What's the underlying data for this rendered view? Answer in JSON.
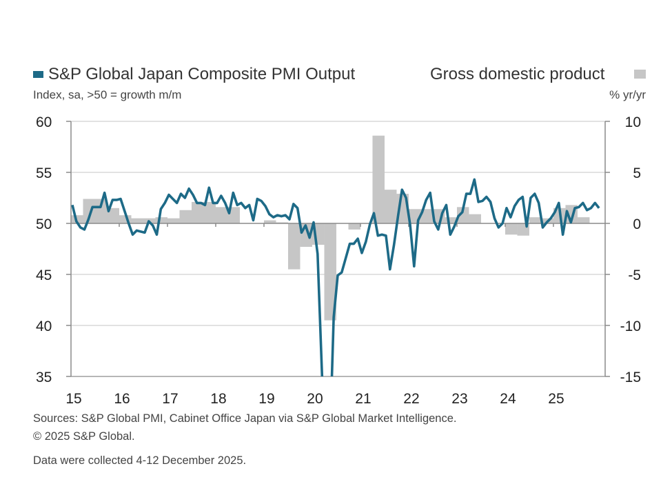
{
  "legend": {
    "pmi_label": "S&P Global Japan Composite PMI Output",
    "gdp_label": "Gross domestic product",
    "left_unit": "Index, sa, >50 = growth m/m",
    "right_unit": "% yr/yr"
  },
  "footer": {
    "sources": "Sources: S&P Global PMI, Cabinet Office Japan via S&P Global Market Intelligence.",
    "copyright": "© 2025 S&P Global.",
    "collected": "Data were collected 4-12 December 2025."
  },
  "colors": {
    "pmi": "#1d6a87",
    "gdp": "#c6c6c6",
    "grid": "#d0d0d0",
    "axis": "#8a8a8a"
  },
  "chart_data": {
    "type": "bar+line",
    "x_tick_labels": [
      "15",
      "16",
      "17",
      "18",
      "19",
      "20",
      "21",
      "22",
      "23",
      "24",
      "25"
    ],
    "left_axis": {
      "ylim": [
        35,
        60
      ],
      "ticks": [
        "60",
        "55",
        "50",
        "45",
        "40",
        "35"
      ]
    },
    "right_axis": {
      "ylim": [
        -15,
        10
      ],
      "ticks": [
        "10",
        "5",
        "0",
        "-5",
        "-10",
        "-15"
      ]
    },
    "grid": true,
    "legend_placement": "top",
    "pmi_monthly": [
      {
        "year": 2015,
        "values": [
          51.8,
          50.2,
          49.6,
          49.4,
          50.4,
          51.6,
          51.6,
          51.6,
          53.0,
          51.2,
          52.3,
          52.3
        ]
      },
      {
        "year": 2016,
        "values": [
          52.4,
          51.2,
          50.0,
          48.9,
          49.3,
          49.2,
          49.1,
          50.2,
          49.8,
          48.9,
          51.4,
          52.0
        ]
      },
      {
        "year": 2017,
        "values": [
          52.8,
          52.4,
          52.0,
          52.9,
          52.5,
          53.4,
          52.8,
          52.0,
          52.0,
          51.8,
          53.5,
          52.0
        ]
      },
      {
        "year": 2018,
        "values": [
          52.0,
          52.7,
          52.0,
          51.0,
          53.0,
          51.8,
          52.0,
          51.5,
          51.8,
          50.3,
          52.4,
          52.2
        ]
      },
      {
        "year": 2019,
        "values": [
          51.7,
          50.9,
          50.6,
          50.8,
          50.7,
          50.8,
          50.4,
          51.9,
          51.5,
          49.1,
          49.8,
          48.6
        ]
      },
      {
        "year": 2020,
        "values": [
          50.1,
          47.0,
          36.2,
          25.8,
          27.8,
          40.8,
          44.9,
          45.2,
          46.6,
          48.0,
          48.0,
          48.5
        ]
      },
      {
        "year": 2021,
        "values": [
          47.1,
          48.2,
          49.9,
          51.0,
          48.8,
          48.9,
          48.8,
          45.5,
          47.9,
          50.7,
          53.3,
          52.5
        ]
      },
      {
        "year": 2022,
        "values": [
          49.9,
          45.8,
          50.3,
          51.1,
          52.3,
          53.0,
          50.2,
          49.4,
          51.0,
          51.8,
          48.9,
          49.7
        ]
      },
      {
        "year": 2023,
        "values": [
          50.7,
          51.1,
          52.9,
          52.9,
          54.3,
          52.1,
          52.2,
          52.6,
          52.1,
          50.5,
          49.6,
          50.0
        ]
      },
      {
        "year": 2024,
        "values": [
          51.5,
          50.6,
          51.7,
          52.3,
          52.6,
          49.7,
          52.5,
          52.9,
          52.0,
          49.6,
          50.1,
          50.5
        ]
      },
      {
        "year": 2025,
        "values": [
          51.1,
          52.0,
          48.9,
          51.2,
          50.1,
          51.5,
          51.6,
          52.0,
          51.3,
          51.5,
          52.0,
          51.5
        ]
      }
    ],
    "gdp_quarterly": [
      {
        "year": 2015,
        "values": [
          0.8,
          2.4,
          2.4,
          1.5
        ]
      },
      {
        "year": 2016,
        "values": [
          0.8,
          0.5,
          0.5,
          0.6
        ]
      },
      {
        "year": 2017,
        "values": [
          0.5,
          1.3,
          2.1,
          2.1
        ]
      },
      {
        "year": 2018,
        "values": [
          1.6,
          1.6,
          0.0,
          0.0
        ]
      },
      {
        "year": 2019,
        "values": [
          0.3,
          0.1,
          -4.5,
          -2.3
        ]
      },
      {
        "year": 2020,
        "values": [
          -2.1,
          -9.5,
          0.0,
          -0.6
        ]
      },
      {
        "year": 2021,
        "values": [
          0.0,
          8.6,
          3.3,
          2.9
        ]
      },
      {
        "year": 2022,
        "values": [
          1.4,
          1.4,
          1.4,
          0.6
        ]
      },
      {
        "year": 2023,
        "values": [
          1.6,
          0.9,
          0.0,
          0.0
        ]
      },
      {
        "year": 2024,
        "values": [
          -1.1,
          -1.2,
          0.6,
          0.5
        ]
      },
      {
        "year": 2025,
        "values": [
          1.5,
          1.8,
          0.6
        ]
      }
    ]
  }
}
